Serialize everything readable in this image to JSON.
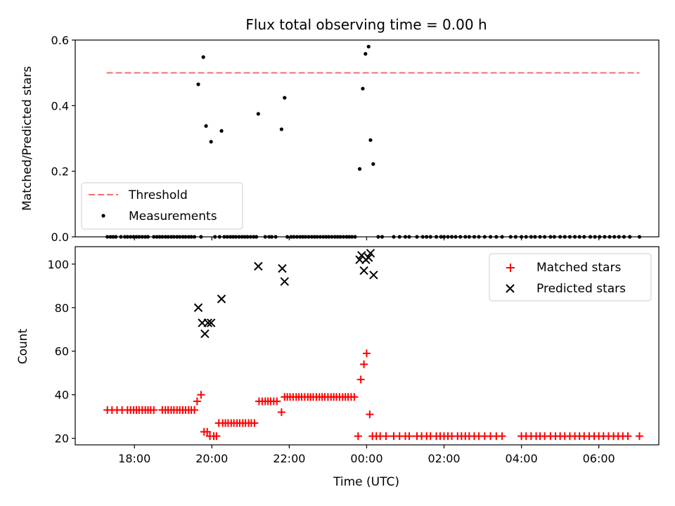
{
  "title": "Flux total observing time = 0.00 h",
  "chart_data": [
    {
      "type": "scatter",
      "panel": "top",
      "ylabel": "Matched/Predicted stars",
      "xlabel": "",
      "ylim": [
        0,
        0.6
      ],
      "yticks": [
        0.0,
        0.2,
        0.4,
        0.6
      ],
      "ytick_labels": [
        "0.0",
        "0.2",
        "0.4",
        "0.6"
      ],
      "xlim_hours": [
        16.47,
        31.55
      ],
      "xtick_hours": [
        18,
        20,
        22,
        24,
        26,
        28,
        30
      ],
      "xtick_labels": [
        "18:00",
        "20:00",
        "22:00",
        "00:00",
        "02:00",
        "04:00",
        "06:00"
      ],
      "legend_position": "lower-left",
      "threshold": {
        "name": "Threshold",
        "color": "#f07070",
        "value": 0.5,
        "x_start": 17.28,
        "x_end": 31.05
      },
      "measurements": {
        "name": "Measurements",
        "color": "#000000",
        "points": [
          [
            19.65,
            0.465
          ],
          [
            19.78,
            0.548
          ],
          [
            19.85,
            0.338
          ],
          [
            19.98,
            0.29
          ],
          [
            20.25,
            0.323
          ],
          [
            21.2,
            0.375
          ],
          [
            21.8,
            0.328
          ],
          [
            21.88,
            0.424
          ],
          [
            23.82,
            0.207
          ],
          [
            23.9,
            0.452
          ],
          [
            23.97,
            0.558
          ],
          [
            24.05,
            0.58
          ],
          [
            24.1,
            0.295
          ],
          [
            24.17,
            0.222
          ]
        ],
        "zero_hours": [
          17.3,
          17.38,
          17.45,
          17.52,
          17.65,
          17.75,
          17.82,
          17.9,
          17.98,
          18.05,
          18.12,
          18.2,
          18.28,
          18.35,
          18.5,
          18.58,
          18.65,
          18.72,
          18.8,
          18.87,
          18.95,
          19.02,
          19.1,
          19.17,
          19.25,
          19.32,
          19.4,
          19.47,
          19.55,
          19.72,
          20.08,
          20.2,
          20.32,
          20.4,
          20.48,
          20.55,
          20.62,
          20.7,
          20.78,
          20.85,
          20.92,
          21.0,
          21.08,
          21.15,
          21.38,
          21.48,
          21.55,
          21.65,
          21.95,
          22.05,
          22.12,
          22.2,
          22.28,
          22.35,
          22.42,
          22.5,
          22.58,
          22.65,
          22.72,
          22.8,
          22.88,
          22.95,
          23.02,
          23.1,
          23.18,
          23.25,
          23.32,
          23.4,
          23.48,
          23.55,
          23.62,
          23.7,
          24.3,
          24.4,
          24.7,
          24.85,
          25.0,
          25.1,
          25.3,
          25.45,
          25.55,
          25.65,
          25.8,
          25.92,
          26.0,
          26.1,
          26.2,
          26.3,
          26.42,
          26.55,
          26.65,
          26.78,
          26.9,
          27.05,
          27.2,
          27.35,
          27.5,
          27.72,
          27.85,
          28.0,
          28.12,
          28.25,
          28.35,
          28.48,
          28.6,
          28.75,
          28.85,
          29.0,
          29.12,
          29.25,
          29.38,
          29.5,
          29.62,
          29.78,
          29.9,
          30.02,
          30.15,
          30.28,
          30.4,
          30.52,
          30.65,
          30.8,
          31.05
        ]
      }
    },
    {
      "type": "scatter",
      "panel": "bottom",
      "ylabel": "Count",
      "xlabel": "Time (UTC)",
      "ylim": [
        17,
        108
      ],
      "yticks": [
        20,
        40,
        60,
        80,
        100
      ],
      "ytick_labels": [
        "20",
        "40",
        "60",
        "80",
        "100"
      ],
      "xlim_hours": [
        16.47,
        31.55
      ],
      "xtick_hours": [
        18,
        20,
        22,
        24,
        26,
        28,
        30
      ],
      "xtick_labels": [
        "18:00",
        "20:00",
        "22:00",
        "00:00",
        "02:00",
        "04:00",
        "06:00"
      ],
      "legend_position": "upper-right",
      "matched": {
        "name": "Matched stars",
        "color": "#ff0000",
        "points": [
          [
            17.3,
            33
          ],
          [
            17.42,
            33
          ],
          [
            17.55,
            33
          ],
          [
            17.68,
            33
          ],
          [
            17.82,
            33
          ],
          [
            17.9,
            33
          ],
          [
            17.98,
            33
          ],
          [
            18.05,
            33
          ],
          [
            18.12,
            33
          ],
          [
            18.2,
            33
          ],
          [
            18.28,
            33
          ],
          [
            18.35,
            33
          ],
          [
            18.42,
            33
          ],
          [
            18.5,
            33
          ],
          [
            18.72,
            33
          ],
          [
            18.8,
            33
          ],
          [
            18.87,
            33
          ],
          [
            18.95,
            33
          ],
          [
            19.02,
            33
          ],
          [
            19.1,
            33
          ],
          [
            19.17,
            33
          ],
          [
            19.25,
            33
          ],
          [
            19.32,
            33
          ],
          [
            19.4,
            33
          ],
          [
            19.47,
            33
          ],
          [
            19.55,
            33
          ],
          [
            19.62,
            37
          ],
          [
            19.72,
            40
          ],
          [
            19.8,
            23
          ],
          [
            19.88,
            23
          ],
          [
            19.95,
            21
          ],
          [
            20.05,
            21
          ],
          [
            20.12,
            21
          ],
          [
            20.18,
            27
          ],
          [
            20.28,
            27
          ],
          [
            20.35,
            27
          ],
          [
            20.42,
            27
          ],
          [
            20.5,
            27
          ],
          [
            20.57,
            27
          ],
          [
            20.65,
            27
          ],
          [
            20.72,
            27
          ],
          [
            20.8,
            27
          ],
          [
            20.87,
            27
          ],
          [
            20.95,
            27
          ],
          [
            21.02,
            27
          ],
          [
            21.1,
            27
          ],
          [
            21.22,
            37
          ],
          [
            21.3,
            37
          ],
          [
            21.38,
            37
          ],
          [
            21.45,
            37
          ],
          [
            21.52,
            37
          ],
          [
            21.6,
            37
          ],
          [
            21.68,
            37
          ],
          [
            21.8,
            32
          ],
          [
            21.88,
            39
          ],
          [
            21.95,
            39
          ],
          [
            22.02,
            39
          ],
          [
            22.1,
            39
          ],
          [
            22.18,
            39
          ],
          [
            22.25,
            39
          ],
          [
            22.32,
            39
          ],
          [
            22.4,
            39
          ],
          [
            22.48,
            39
          ],
          [
            22.55,
            39
          ],
          [
            22.62,
            39
          ],
          [
            22.7,
            39
          ],
          [
            22.78,
            39
          ],
          [
            22.85,
            39
          ],
          [
            22.92,
            39
          ],
          [
            23.0,
            39
          ],
          [
            23.08,
            39
          ],
          [
            23.15,
            39
          ],
          [
            23.22,
            39
          ],
          [
            23.3,
            39
          ],
          [
            23.38,
            39
          ],
          [
            23.45,
            39
          ],
          [
            23.52,
            39
          ],
          [
            23.6,
            39
          ],
          [
            23.68,
            39
          ],
          [
            23.78,
            21
          ],
          [
            23.85,
            47
          ],
          [
            23.93,
            54
          ],
          [
            24.0,
            59
          ],
          [
            24.08,
            31
          ],
          [
            24.15,
            21
          ],
          [
            24.25,
            21
          ],
          [
            24.35,
            21
          ],
          [
            24.5,
            21
          ],
          [
            24.7,
            21
          ],
          [
            24.85,
            21
          ],
          [
            25.0,
            21
          ],
          [
            25.1,
            21
          ],
          [
            25.3,
            21
          ],
          [
            25.42,
            21
          ],
          [
            25.55,
            21
          ],
          [
            25.65,
            21
          ],
          [
            25.8,
            21
          ],
          [
            25.9,
            21
          ],
          [
            26.0,
            21
          ],
          [
            26.1,
            21
          ],
          [
            26.2,
            21
          ],
          [
            26.35,
            21
          ],
          [
            26.45,
            21
          ],
          [
            26.55,
            21
          ],
          [
            26.65,
            21
          ],
          [
            26.78,
            21
          ],
          [
            26.9,
            21
          ],
          [
            27.05,
            21
          ],
          [
            27.2,
            21
          ],
          [
            27.35,
            21
          ],
          [
            27.5,
            21
          ],
          [
            28.0,
            21
          ],
          [
            28.12,
            21
          ],
          [
            28.25,
            21
          ],
          [
            28.38,
            21
          ],
          [
            28.48,
            21
          ],
          [
            28.6,
            21
          ],
          [
            28.75,
            21
          ],
          [
            28.88,
            21
          ],
          [
            29.0,
            21
          ],
          [
            29.12,
            21
          ],
          [
            29.25,
            21
          ],
          [
            29.38,
            21
          ],
          [
            29.5,
            21
          ],
          [
            29.62,
            21
          ],
          [
            29.75,
            21
          ],
          [
            29.88,
            21
          ],
          [
            30.0,
            21
          ],
          [
            30.12,
            21
          ],
          [
            30.25,
            21
          ],
          [
            30.38,
            21
          ],
          [
            30.5,
            21
          ],
          [
            30.62,
            21
          ],
          [
            30.75,
            21
          ],
          [
            31.05,
            21
          ]
        ]
      },
      "predicted": {
        "name": "Predicted stars",
        "color": "#000000",
        "points": [
          [
            19.65,
            80
          ],
          [
            19.75,
            73
          ],
          [
            19.82,
            68
          ],
          [
            19.9,
            73
          ],
          [
            19.98,
            73
          ],
          [
            20.25,
            84
          ],
          [
            21.2,
            99
          ],
          [
            21.82,
            98
          ],
          [
            21.88,
            92
          ],
          [
            23.82,
            102
          ],
          [
            23.87,
            104
          ],
          [
            23.93,
            97
          ],
          [
            23.98,
            102
          ],
          [
            24.05,
            103
          ],
          [
            24.1,
            105
          ],
          [
            24.18,
            95
          ]
        ]
      }
    }
  ]
}
